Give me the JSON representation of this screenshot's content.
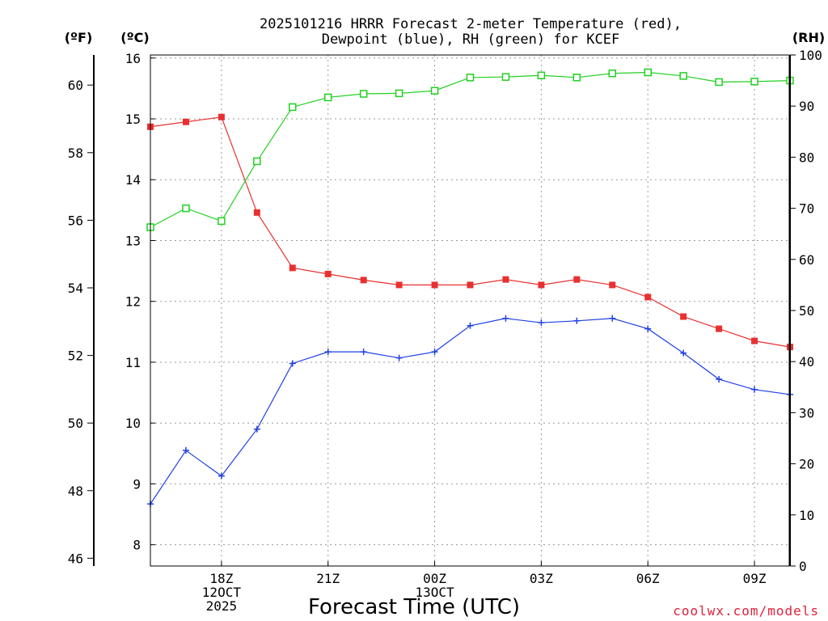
{
  "chart_data": {
    "type": "line",
    "title_line1": "2025101216 HRRR Forecast 2-meter Temperature (red),",
    "title_line2": "Dewpoint (blue), RH (green) for KCEF",
    "xlabel": "Forecast Time (UTC)",
    "credit": "coolwx.com/models",
    "units": {
      "left_f": "(ºF)",
      "left_c": "(ºC)",
      "right": "(RH)"
    },
    "x_hours_from_start": [
      0,
      1,
      2,
      3,
      4,
      5,
      6,
      7,
      8,
      9,
      10,
      11,
      12,
      13,
      14,
      15,
      16,
      17,
      18
    ],
    "xlim": [
      0,
      18
    ],
    "x_ticks": [
      {
        "hour": 2,
        "lines": [
          "18Z",
          "12OCT",
          "2025"
        ]
      },
      {
        "hour": 5,
        "lines": [
          "21Z"
        ]
      },
      {
        "hour": 8,
        "lines": [
          "00Z",
          "13OCT"
        ]
      },
      {
        "hour": 11,
        "lines": [
          "03Z"
        ]
      },
      {
        "hour": 14,
        "lines": [
          "06Z"
        ]
      },
      {
        "hour": 17,
        "lines": [
          "09Z"
        ]
      }
    ],
    "c_axis": {
      "range": [
        7.65,
        16.05
      ],
      "ticks": [
        8,
        9,
        10,
        11,
        12,
        13,
        14,
        15,
        16
      ]
    },
    "f_axis": {
      "ticks": [
        46,
        48,
        50,
        52,
        54,
        56,
        58,
        60
      ]
    },
    "rh_axis": {
      "range": [
        0,
        100
      ],
      "ticks": [
        0,
        10,
        20,
        30,
        40,
        50,
        60,
        70,
        80,
        90,
        100
      ]
    },
    "series": [
      {
        "name": "Temperature",
        "unit": "C",
        "color": "#e83030",
        "marker": "filled-square",
        "values": [
          14.87,
          14.95,
          15.03,
          13.46,
          12.55,
          12.45,
          12.35,
          12.27,
          12.27,
          12.27,
          12.36,
          12.27,
          12.36,
          12.27,
          12.07,
          11.75,
          11.55,
          11.35,
          11.25
        ]
      },
      {
        "name": "Dewpoint",
        "unit": "C",
        "color": "#2040e0",
        "marker": "plus",
        "values": [
          8.67,
          9.55,
          9.13,
          9.9,
          10.98,
          11.17,
          11.17,
          11.07,
          11.17,
          11.6,
          11.72,
          11.65,
          11.68,
          11.72,
          11.55,
          11.15,
          10.72,
          10.55,
          10.47
        ]
      },
      {
        "name": "RH",
        "unit": "%",
        "color": "#20d020",
        "marker": "open-square",
        "values": [
          66.3,
          70.0,
          67.5,
          79.2,
          89.8,
          91.7,
          92.4,
          92.5,
          93.0,
          95.6,
          95.7,
          96.0,
          95.6,
          96.4,
          96.6,
          95.9,
          94.7,
          94.8,
          95.0
        ]
      }
    ]
  }
}
